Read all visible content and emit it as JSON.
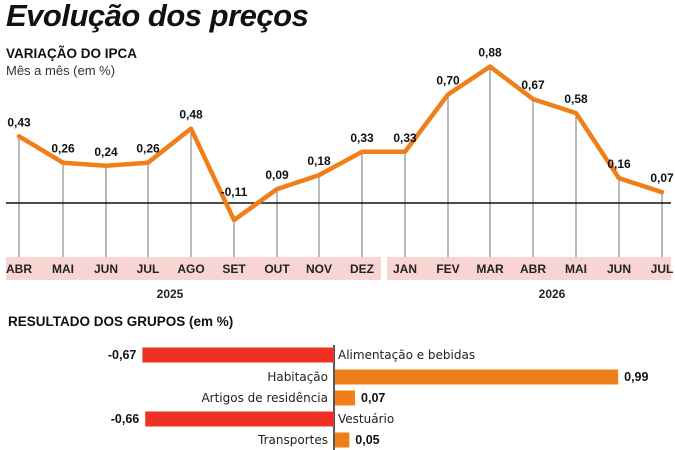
{
  "title": "Evolução dos preços",
  "colors": {
    "line": "#f07f1a",
    "positive": "#f07f1a",
    "negative": "#ee3124",
    "month_band": "#f8d5d2",
    "axis": "#111111"
  },
  "chart_data": [
    {
      "type": "line",
      "title": "VARIAÇÃO DO IPCA",
      "subtitle": "Mês a mês (em %)",
      "categories": [
        "ABR",
        "MAI",
        "JUN",
        "JUL",
        "AGO",
        "SET",
        "OUT",
        "NOV",
        "DEZ",
        "JAN",
        "FEV",
        "MAR",
        "ABR",
        "MAI",
        "JUN",
        "JUL"
      ],
      "years": [
        {
          "label": "2025",
          "from": 0,
          "to": 8
        },
        {
          "label": "2026",
          "from": 9,
          "to": 15
        }
      ],
      "values": [
        0.43,
        0.26,
        0.24,
        0.26,
        0.48,
        -0.11,
        0.09,
        0.18,
        0.33,
        0.33,
        0.7,
        0.88,
        0.67,
        0.58,
        0.16,
        0.07
      ],
      "labels": [
        "0,43",
        "0,26",
        "0,24",
        "0,26",
        "0,48",
        "-0,11",
        "0,09",
        "0,18",
        "0,33",
        "0,33",
        "0,70",
        "0,88",
        "0,67",
        "0,58",
        "0,16",
        "0,07"
      ],
      "ylim": [
        -0.11,
        0.88
      ],
      "grid": "vertical"
    },
    {
      "type": "bar",
      "title": "RESULTADO DOS GRUPOS (em %)",
      "categories": [
        "Alimentação e bebidas",
        "Habitação",
        "Artigos de residência",
        "Vestuário",
        "Transportes"
      ],
      "values": [
        -0.67,
        0.99,
        0.07,
        -0.66,
        0.05
      ],
      "labels": [
        "-0,67",
        "0,99",
        "0,07",
        "-0,66",
        "0,05"
      ]
    }
  ]
}
